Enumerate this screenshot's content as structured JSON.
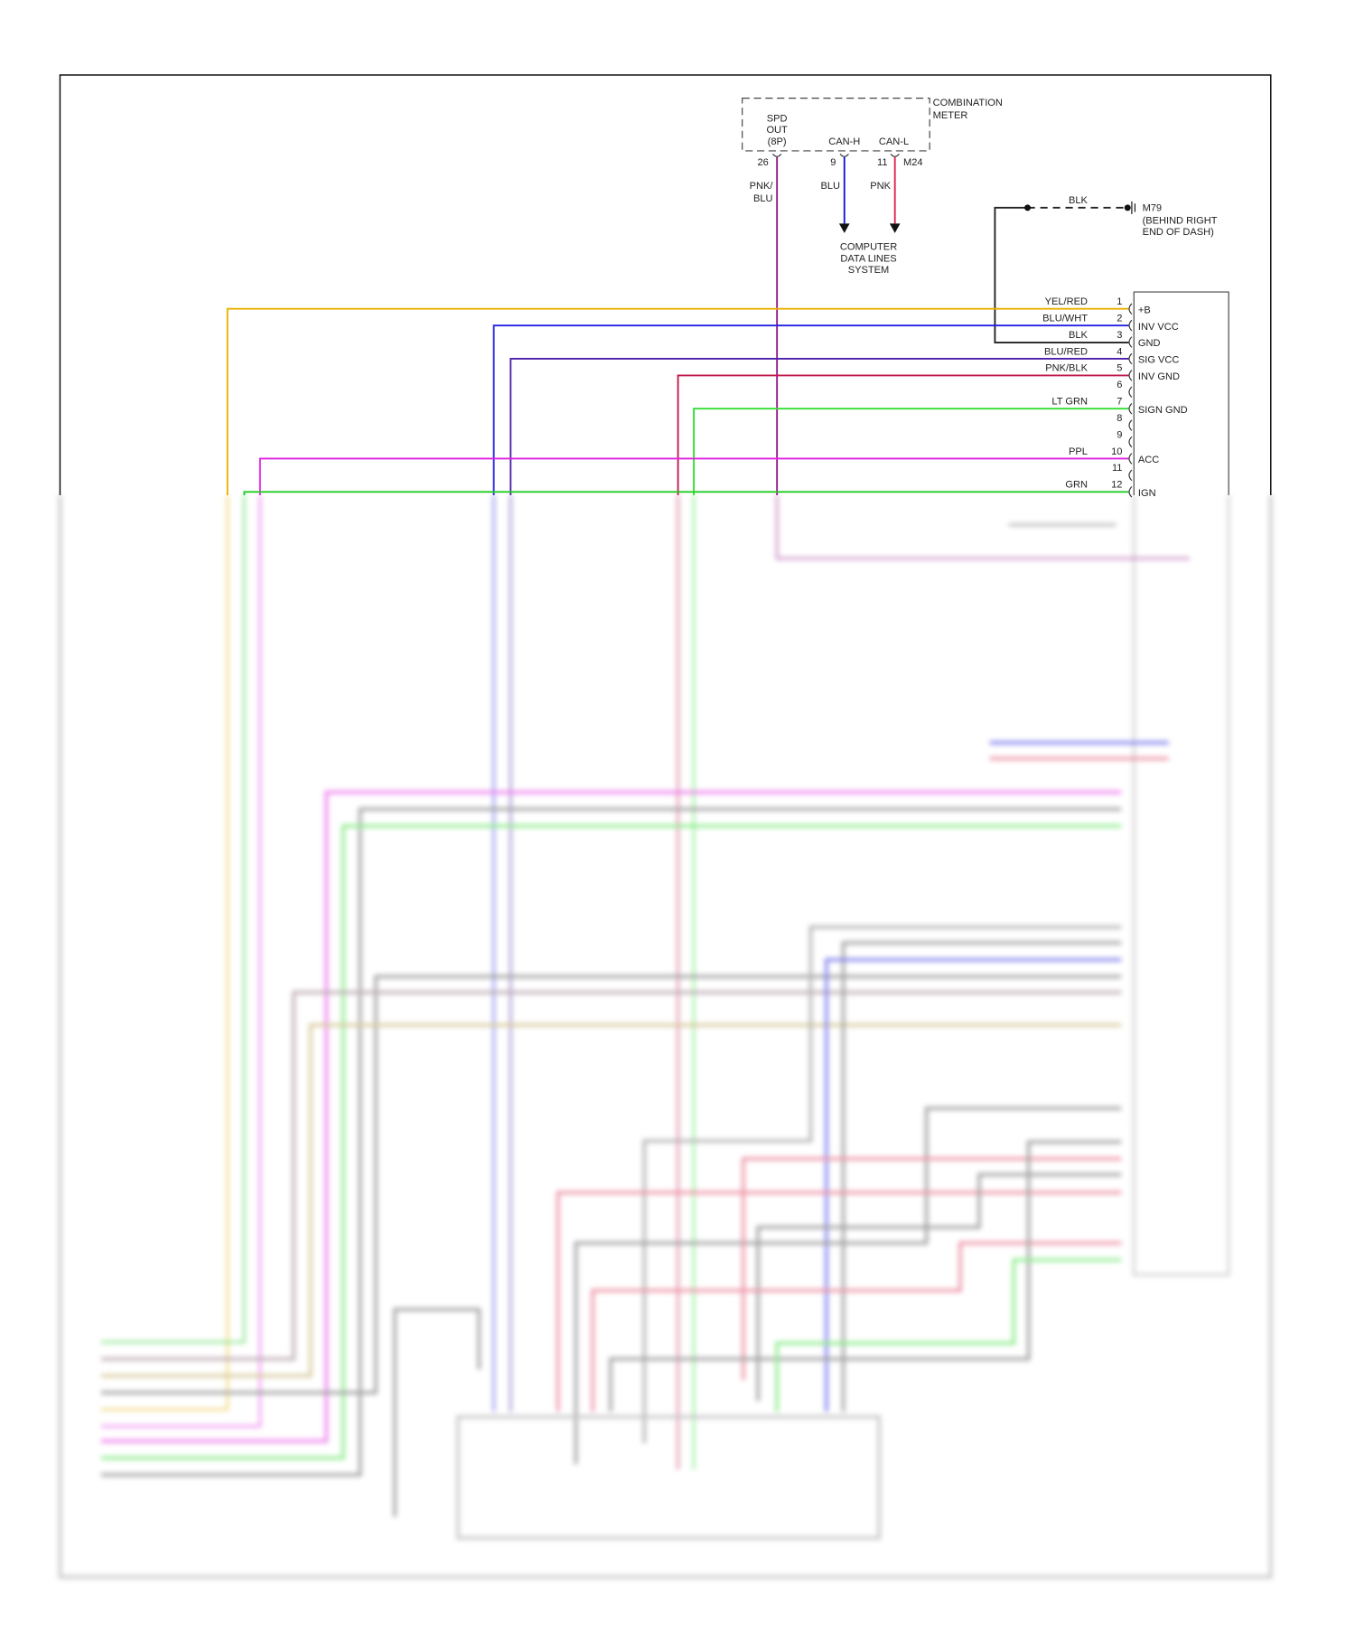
{
  "combination_meter": {
    "title_lines": [
      "COMBINATION",
      "METER"
    ],
    "spd_out_lines": [
      "SPD",
      "OUT",
      "(8P)"
    ],
    "can_h": "CAN-H",
    "can_l": "CAN-L",
    "connector_id": "M24",
    "pins": [
      {
        "pin": "26",
        "wire_lines": [
          "PNK/",
          "BLU"
        ],
        "color": "#9a1a8a"
      },
      {
        "pin": "9",
        "wire_lines": [
          "BLU"
        ],
        "color": "#1414d0"
      },
      {
        "pin": "11",
        "wire_lines": [
          "PNK"
        ],
        "color": "#e0204a"
      }
    ]
  },
  "data_lines_destination": [
    "COMPUTER",
    "DATA LINES",
    "SYSTEM"
  ],
  "ground": {
    "wire": "BLK",
    "id": "M79",
    "location_lines": [
      "(BEHIND RIGHT",
      "END OF DASH)"
    ]
  },
  "connector": {
    "pins": [
      {
        "pin": "1",
        "wire": "YEL/RED",
        "func": "+B",
        "color": "#e8b000"
      },
      {
        "pin": "2",
        "wire": "BLU/WHT",
        "func": "INV VCC",
        "color": "#2020e0"
      },
      {
        "pin": "3",
        "wire": "BLK",
        "func": "GND",
        "color": "#222222"
      },
      {
        "pin": "4",
        "wire": "BLU/RED",
        "func": "SIG VCC",
        "color": "#4b1fa8"
      },
      {
        "pin": "5",
        "wire": "PNK/BLK",
        "func": "INV GND",
        "color": "#c0184a"
      },
      {
        "pin": "6",
        "wire": "",
        "func": "",
        "color": ""
      },
      {
        "pin": "7",
        "wire": "LT GRN",
        "func": "SIGN GND",
        "color": "#33dd33"
      },
      {
        "pin": "8",
        "wire": "",
        "func": "",
        "color": ""
      },
      {
        "pin": "9",
        "wire": "",
        "func": "",
        "color": ""
      },
      {
        "pin": "10",
        "wire": "PPL",
        "func": "ACC",
        "color": "#e020e0"
      },
      {
        "pin": "11",
        "wire": "",
        "func": "",
        "color": ""
      },
      {
        "pin": "12",
        "wire": "GRN",
        "func": "IGN",
        "color": "#22cc22"
      }
    ]
  }
}
